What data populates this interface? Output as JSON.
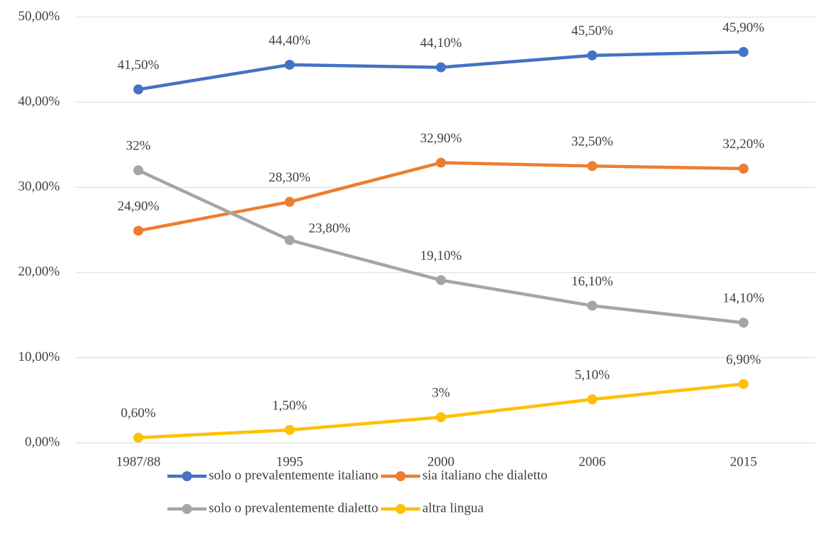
{
  "chart_data": {
    "type": "line",
    "categories": [
      "1987/88",
      "1995",
      "2000",
      "2006",
      "2015"
    ],
    "series": [
      {
        "name": "solo o prevalentemente italiano",
        "color": "#4472c4",
        "values": [
          41.5,
          44.4,
          44.1,
          45.5,
          45.9
        ],
        "value_labels": [
          "41,50%",
          "44,40%",
          "44,10%",
          "45,50%",
          "45,90%"
        ]
      },
      {
        "name": "sia italiano che dialetto",
        "color": "#ed7d31",
        "values": [
          24.9,
          28.3,
          32.9,
          32.5,
          32.2
        ],
        "value_labels": [
          "24,90%",
          "28,30%",
          "32,90%",
          "32,50%",
          "32,20%"
        ]
      },
      {
        "name": "solo o prevalentemente dialetto",
        "color": "#a5a5a5",
        "values": [
          32,
          23.8,
          19.1,
          16.1,
          14.1
        ],
        "value_labels": [
          "32%",
          "23,80%",
          "19,10%",
          "16,10%",
          "14,10%"
        ]
      },
      {
        "name": "altra lingua",
        "color": "#ffc000",
        "values": [
          0.6,
          1.5,
          3,
          5.1,
          6.9
        ],
        "value_labels": [
          "0,60%",
          "1,50%",
          "3%",
          "5,10%",
          "6,90%"
        ]
      }
    ],
    "ylim": [
      0,
      50
    ],
    "yticks": [
      {
        "value": 0,
        "label": "0,00%"
      },
      {
        "value": 10,
        "label": "10,00%"
      },
      {
        "value": 20,
        "label": "20,00%"
      },
      {
        "value": 30,
        "label": "30,00%"
      },
      {
        "value": 40,
        "label": "40,00%"
      },
      {
        "value": 50,
        "label": "50,00%"
      }
    ],
    "grid": true,
    "legend": "bottom"
  }
}
